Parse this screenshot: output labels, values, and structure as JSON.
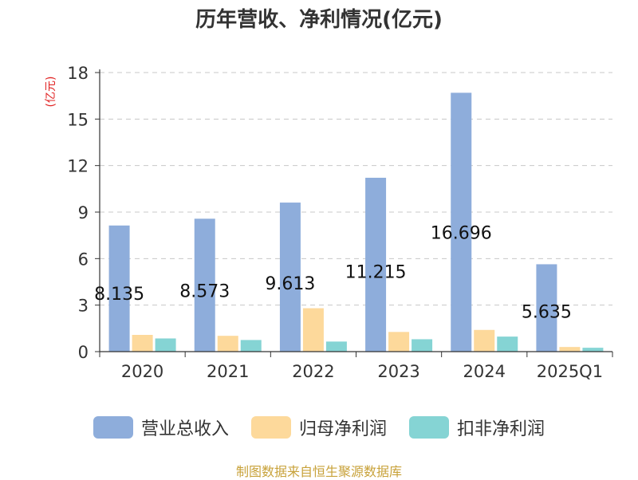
{
  "chart_data": {
    "type": "bar",
    "title": "历年营收、净利情况(亿元)",
    "ylabel": "(亿元)",
    "categories": [
      "2020",
      "2021",
      "2022",
      "2023",
      "2024",
      "2025Q1"
    ],
    "ylim": [
      0,
      18
    ],
    "yticks": [
      0,
      3,
      6,
      9,
      12,
      15,
      18
    ],
    "grid": true,
    "legend_position": "bottom",
    "series": [
      {
        "name": "营业总收入",
        "color": "#8eaddb",
        "values": [
          8.135,
          8.573,
          9.613,
          11.215,
          16.696,
          5.635
        ],
        "data_labels": [
          "8.135",
          "8.573",
          "9.613",
          "11.215",
          "16.696",
          "5.635"
        ]
      },
      {
        "name": "归母净利润",
        "color": "#fdd99b",
        "values": [
          1.08,
          1.02,
          2.8,
          1.27,
          1.4,
          0.3
        ]
      },
      {
        "name": "扣非净利润",
        "color": "#85d4d4",
        "values": [
          0.85,
          0.75,
          0.65,
          0.8,
          0.97,
          0.25
        ]
      }
    ]
  },
  "source": "制图数据来自恒生聚源数据库"
}
